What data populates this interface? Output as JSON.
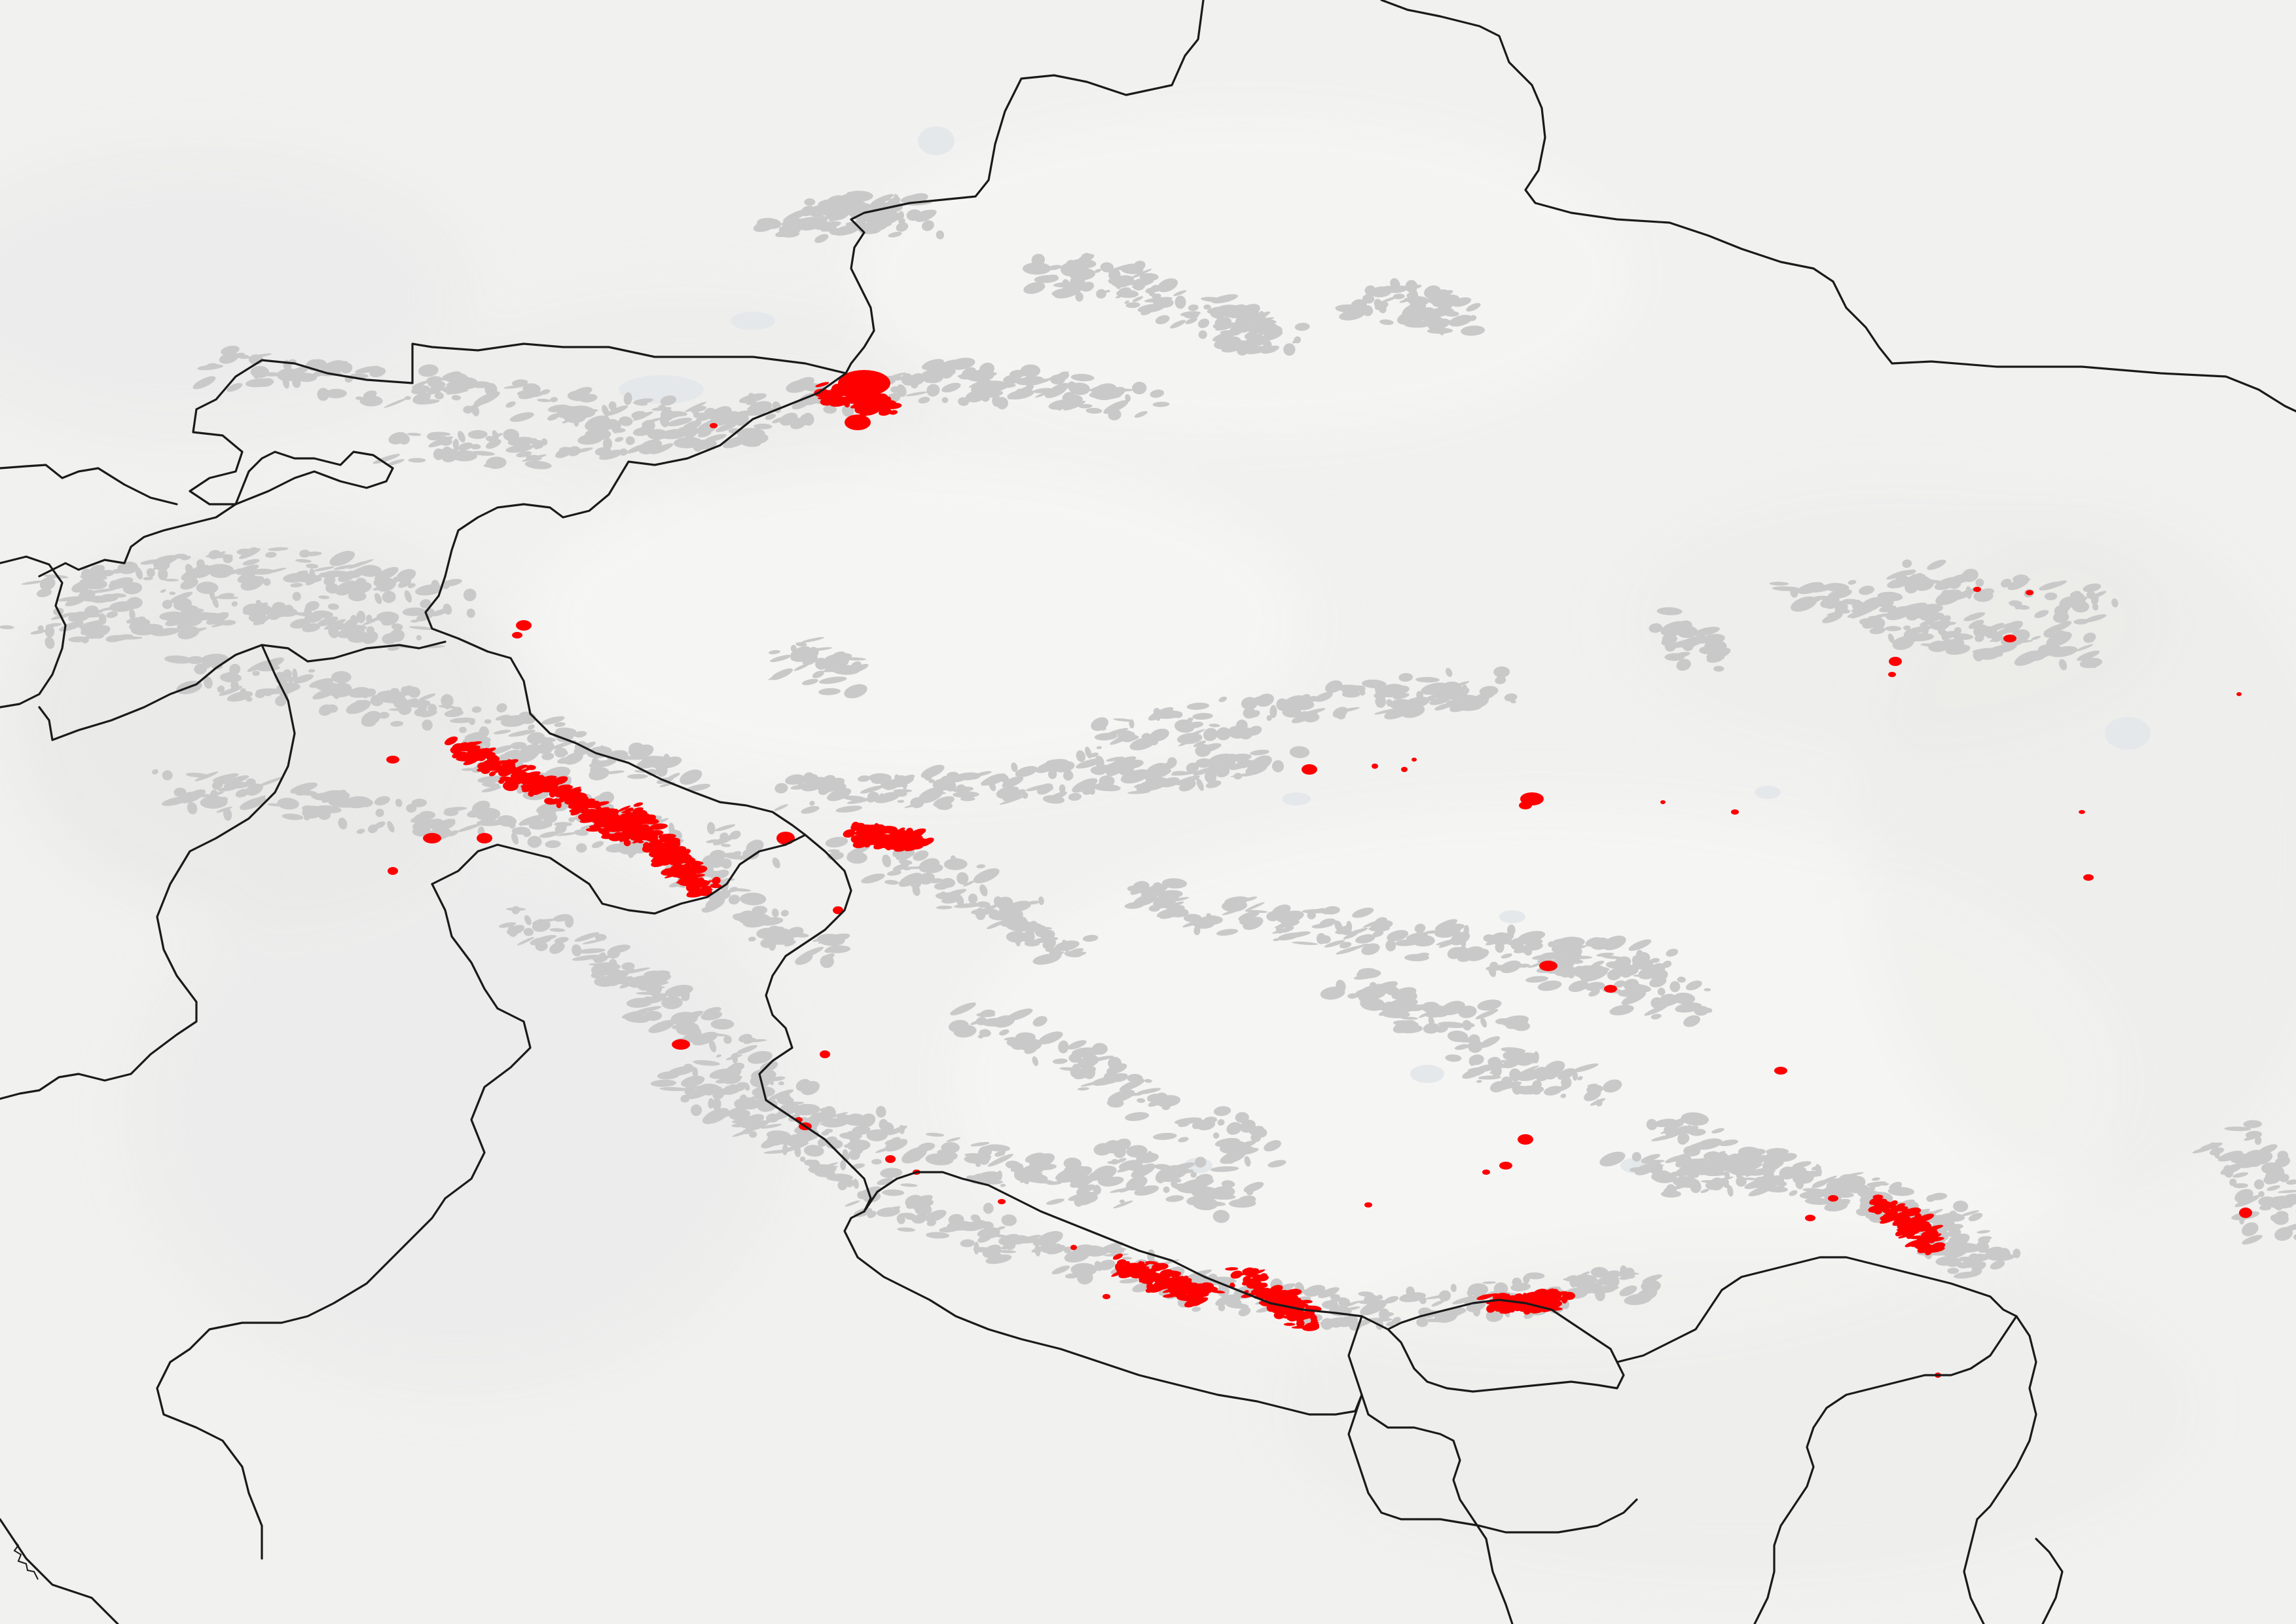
{
  "map": {
    "colors": {
      "background": "#f1f1f0",
      "terrain_light": "#f6f6f5",
      "terrain_shade": "#e7e7e6",
      "water": "#e4e8ea",
      "glacier": "#c9c9c9",
      "highlight": "#ff0000",
      "border": "#1a1a1a"
    },
    "layers": {
      "basemap": "shaded-relief",
      "glaciers": "grey-glacier-extent",
      "highlighted_glaciers": "red-highlighted-glaciers",
      "borders": "national-boundaries"
    }
  }
}
